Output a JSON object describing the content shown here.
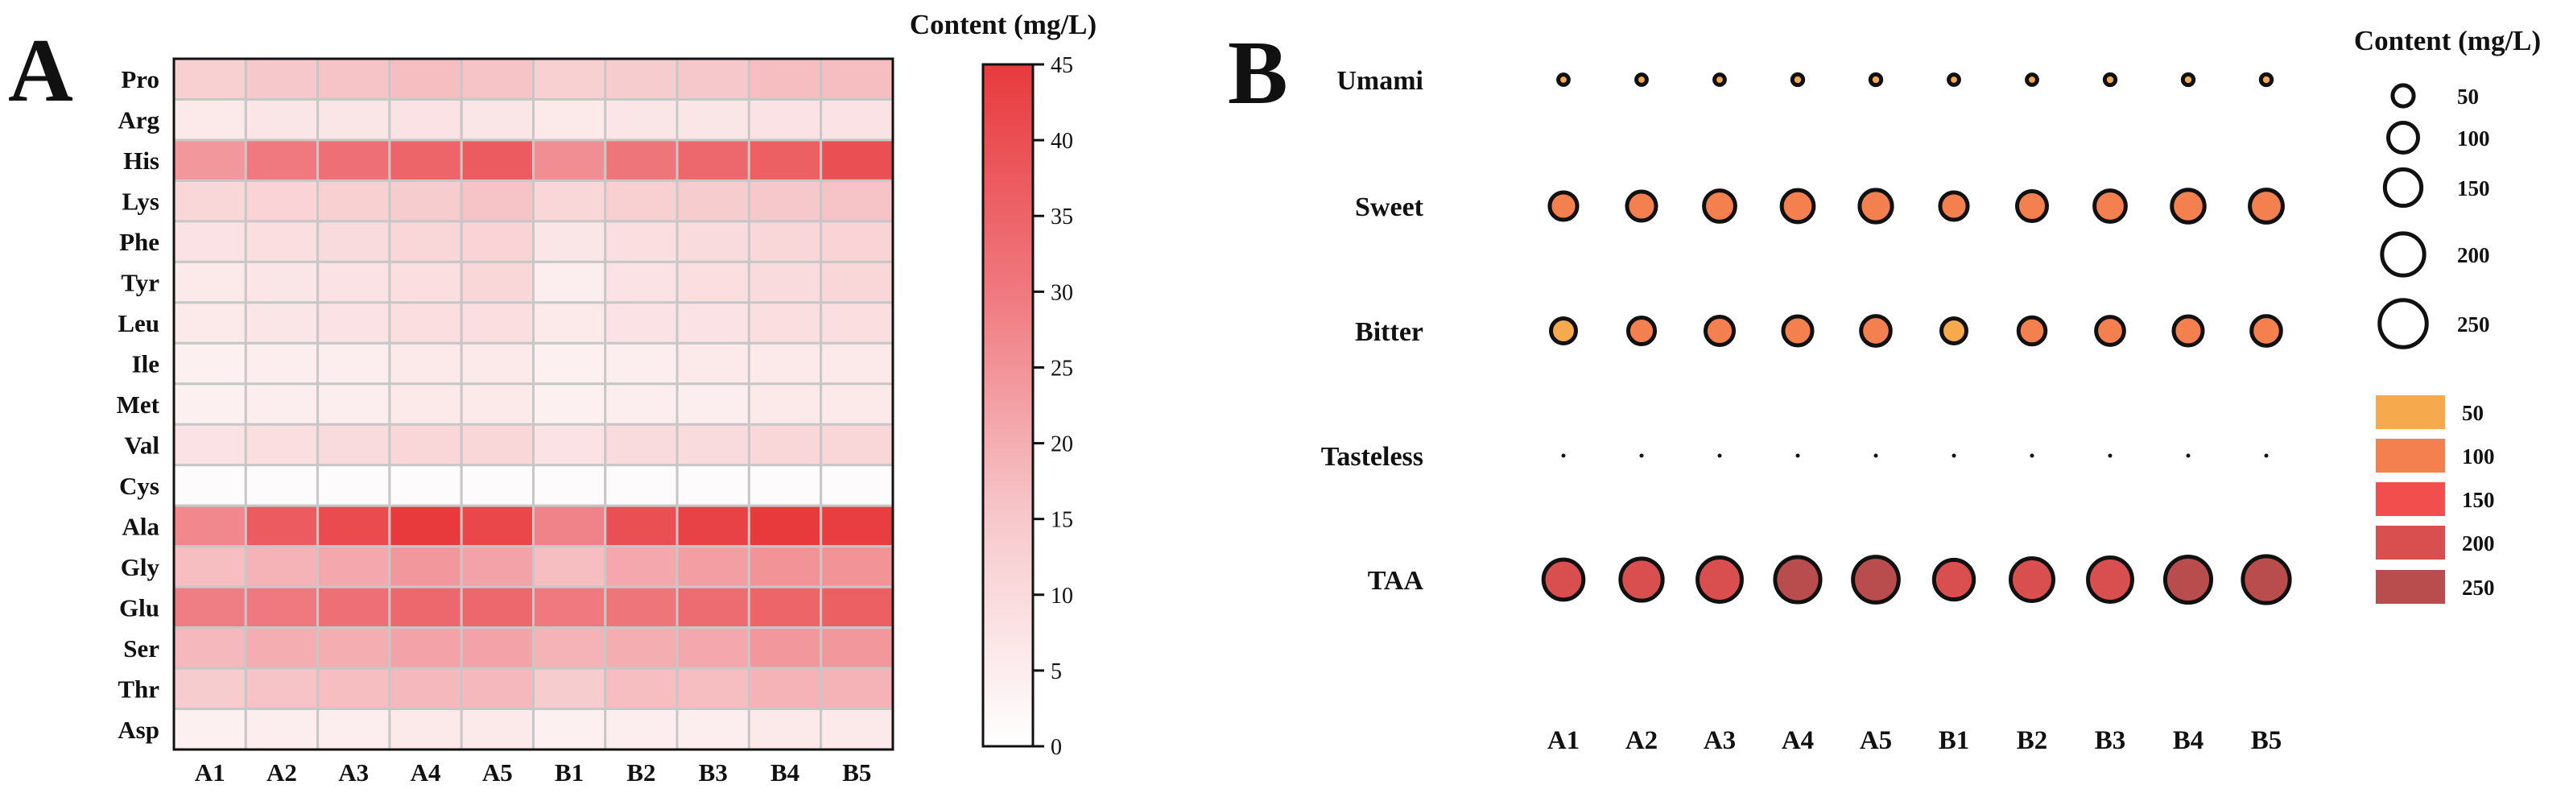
{
  "chart_data": [
    {
      "type": "heatmap",
      "panel_label": "A",
      "colorbar_title": "Content (mg/L)",
      "categories_x": [
        "A1",
        "A2",
        "A3",
        "A4",
        "A5",
        "B1",
        "B2",
        "B3",
        "B4",
        "B5"
      ],
      "categories_y": [
        "Pro",
        "Arg",
        "His",
        "Lys",
        "Phe",
        "Tyr",
        "Leu",
        "Ile",
        "Met",
        "Val",
        "Cys",
        "Ala",
        "Gly",
        "Glu",
        "Ser",
        "Thr",
        "Asp"
      ],
      "colorbar_ticks": [
        "0",
        "5",
        "10",
        "15",
        "20",
        "25",
        "30",
        "35",
        "40",
        "45"
      ],
      "range": [
        0,
        45
      ],
      "values": [
        [
          13,
          15,
          16,
          17,
          16,
          13,
          14,
          15,
          17,
          17
        ],
        [
          6,
          7,
          7,
          8,
          7,
          6,
          7,
          7,
          8,
          8
        ],
        [
          24,
          30,
          32,
          35,
          37,
          26,
          31,
          34,
          36,
          40
        ],
        [
          11,
          12,
          13,
          14,
          16,
          11,
          13,
          14,
          15,
          16
        ],
        [
          8,
          9,
          10,
          11,
          12,
          7,
          9,
          10,
          11,
          12
        ],
        [
          6,
          7,
          8,
          9,
          11,
          5,
          8,
          9,
          10,
          11
        ],
        [
          6,
          7,
          8,
          9,
          9,
          6,
          8,
          8,
          9,
          9
        ],
        [
          4,
          5,
          5,
          6,
          6,
          4,
          5,
          6,
          6,
          6
        ],
        [
          4,
          5,
          5,
          6,
          6,
          4,
          5,
          5,
          6,
          6
        ],
        [
          8,
          9,
          10,
          11,
          11,
          8,
          10,
          10,
          11,
          11
        ],
        [
          1,
          1,
          1,
          1,
          1,
          1,
          1,
          1,
          1,
          1
        ],
        [
          27,
          37,
          41,
          45,
          42,
          28,
          40,
          43,
          45,
          44
        ],
        [
          17,
          19,
          21,
          24,
          22,
          17,
          21,
          23,
          25,
          25
        ],
        [
          29,
          30,
          32,
          34,
          34,
          30,
          31,
          33,
          35,
          36
        ],
        [
          18,
          20,
          20,
          22,
          22,
          19,
          20,
          21,
          24,
          24
        ],
        [
          14,
          16,
          17,
          18,
          18,
          14,
          17,
          17,
          19,
          19
        ],
        [
          4,
          5,
          5,
          6,
          6,
          4,
          5,
          5,
          6,
          6
        ]
      ]
    },
    {
      "type": "scatter",
      "panel_label": "B",
      "title": "Content (mg/L)",
      "x_categories": [
        "A1",
        "A2",
        "A3",
        "A4",
        "A5",
        "B1",
        "B2",
        "B3",
        "B4",
        "B5"
      ],
      "y_categories": [
        "Umami",
        "Sweet",
        "Bitter",
        "Tasteless",
        "TAA"
      ],
      "values": {
        "Umami": [
          12,
          12,
          12,
          13,
          13,
          12,
          12,
          13,
          13,
          13
        ],
        "Sweet": [
          85,
          95,
          110,
          115,
          118,
          85,
          100,
          110,
          120,
          122
        ],
        "Bitter": [
          70,
          80,
          90,
          95,
          98,
          70,
          82,
          88,
          95,
          98
        ],
        "Tasteless": [
          1,
          1,
          1,
          1,
          1,
          1,
          1,
          1,
          1,
          1
        ],
        "TAA": [
          180,
          200,
          220,
          230,
          235,
          178,
          205,
          220,
          238,
          248
        ]
      },
      "size_legend": [
        {
          "value": 50,
          "label": "50"
        },
        {
          "value": 100,
          "label": "100"
        },
        {
          "value": 150,
          "label": "150"
        },
        {
          "value": 200,
          "label": "200"
        },
        {
          "value": 250,
          "label": "250"
        }
      ],
      "color_legend": [
        {
          "label": "50",
          "color": "#f7a94d"
        },
        {
          "label": "100",
          "color": "#f47f4f"
        },
        {
          "label": "150",
          "color": "#f34e4e"
        },
        {
          "label": "200",
          "color": "#d94f4f"
        },
        {
          "label": "250",
          "color": "#b94c4c"
        }
      ]
    }
  ]
}
